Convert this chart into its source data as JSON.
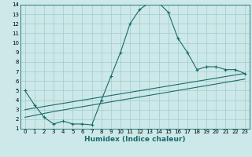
{
  "title": "",
  "xlabel": "Humidex (Indice chaleur)",
  "ylabel": "",
  "bg_color": "#cce8e8",
  "grid_color": "#aacfcf",
  "line_color": "#1a6b6b",
  "xlim": [
    -0.5,
    23.5
  ],
  "ylim": [
    1,
    14
  ],
  "xticks": [
    0,
    1,
    2,
    3,
    4,
    5,
    6,
    7,
    8,
    9,
    10,
    11,
    12,
    13,
    14,
    15,
    16,
    17,
    18,
    19,
    20,
    21,
    22,
    23
  ],
  "yticks": [
    1,
    2,
    3,
    4,
    5,
    6,
    7,
    8,
    9,
    10,
    11,
    12,
    13,
    14
  ],
  "series1_x": [
    0,
    1,
    2,
    3,
    4,
    5,
    6,
    7,
    8,
    9,
    10,
    11,
    12,
    13,
    14,
    15,
    16,
    17,
    18,
    19,
    20,
    21,
    22,
    23
  ],
  "series1_y": [
    5.0,
    3.5,
    2.2,
    1.5,
    1.8,
    1.5,
    1.5,
    1.4,
    4.0,
    6.5,
    9.0,
    12.0,
    13.5,
    14.2,
    14.2,
    13.2,
    10.5,
    9.0,
    7.2,
    7.5,
    7.5,
    7.2,
    7.2,
    6.8
  ],
  "series2_x": [
    0,
    3,
    23
  ],
  "series2_y": [
    3.0,
    3.5,
    6.8
  ],
  "series3_x": [
    0,
    3,
    23
  ],
  "series3_y": [
    2.2,
    2.8,
    6.2
  ],
  "xlabel_fontsize": 6.5,
  "tick_fontsize": 5.0
}
